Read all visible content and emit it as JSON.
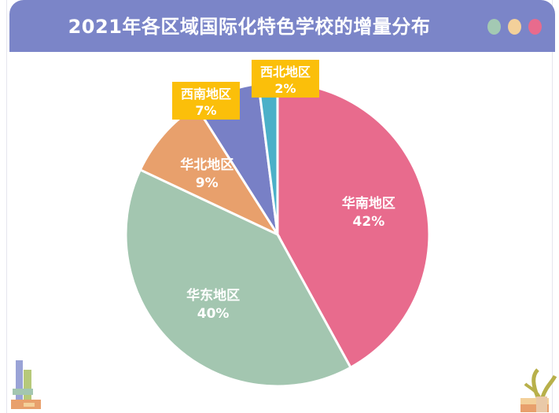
{
  "header": {
    "title": "2021年各区域国际化特色学校的增量分布",
    "dots": [
      "#a3c9b3",
      "#f3d09a",
      "#e86b8d"
    ]
  },
  "chart_data": {
    "type": "pie",
    "title": "2021年各区域国际化特色学校的增量分布",
    "slices": [
      {
        "label": "华南地区",
        "value": 42,
        "pct_label": "42%",
        "color": "#e86b8d",
        "label_style": "inside"
      },
      {
        "label": "华东地区",
        "value": 40,
        "pct_label": "40%",
        "color": "#a3c6b0",
        "label_style": "inside"
      },
      {
        "label": "华北地区",
        "value": 9,
        "pct_label": "9%",
        "color": "#e8a06c",
        "label_style": "inside"
      },
      {
        "label": "西南地区",
        "value": 7,
        "pct_label": "7%",
        "color": "#7880c6",
        "label_style": "box"
      },
      {
        "label": "西北地区",
        "value": 2,
        "pct_label": "2%",
        "color": "#4bb0c8",
        "label_style": "box"
      }
    ],
    "start_direction": "top",
    "direction": "clockwise",
    "label_box_color": "#fbbf0a"
  }
}
